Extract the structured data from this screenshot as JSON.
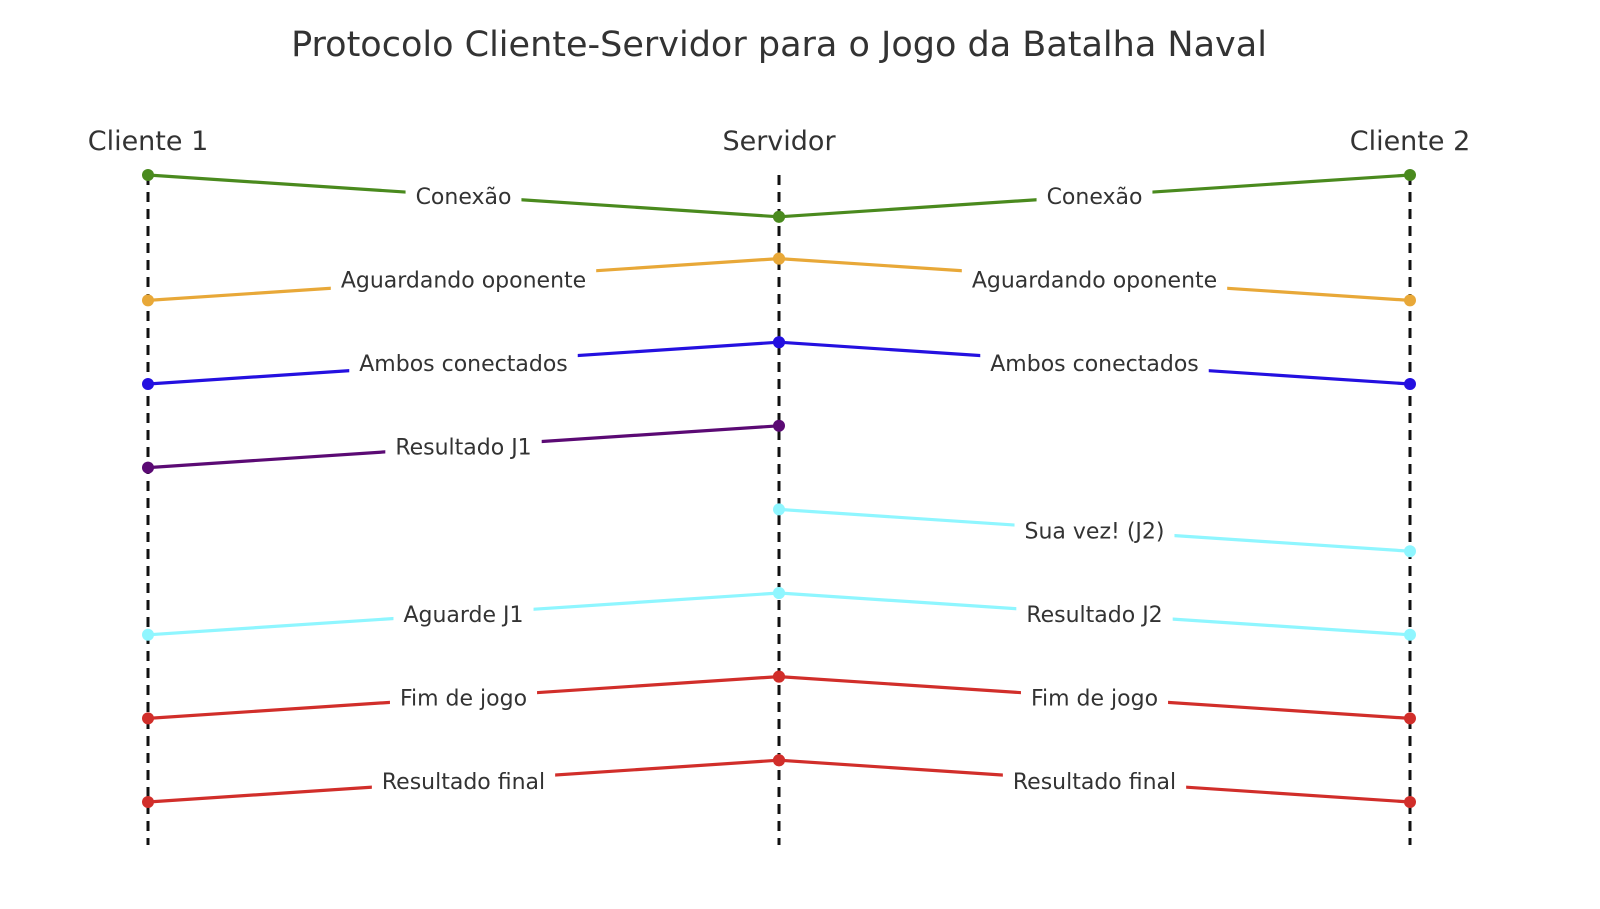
{
  "title": "Protocolo Cliente-Servidor para o Jogo da Batalha Naval",
  "lanes": [
    {
      "id": "c1",
      "label": "Cliente 1"
    },
    {
      "id": "srv",
      "label": "Servidor"
    },
    {
      "id": "c2",
      "label": "Cliente 2"
    }
  ],
  "messages": [
    {
      "from": "c1",
      "to": "srv",
      "label": "Conexão",
      "step": 0,
      "color": "#4a8a1e"
    },
    {
      "from": "c2",
      "to": "srv",
      "label": "Conexão",
      "step": 0,
      "color": "#4a8a1e"
    },
    {
      "from": "srv",
      "to": "c1",
      "label": "Aguardando oponente",
      "step": 2,
      "color": "#e8a838"
    },
    {
      "from": "srv",
      "to": "c2",
      "label": "Aguardando oponente",
      "step": 2,
      "color": "#e8a838"
    },
    {
      "from": "srv",
      "to": "c1",
      "label": "Ambos conectados",
      "step": 4,
      "color": "#2410e0"
    },
    {
      "from": "srv",
      "to": "c2",
      "label": "Ambos conectados",
      "step": 4,
      "color": "#2410e0"
    },
    {
      "from": "srv",
      "to": "c1",
      "label": "Resultado J1",
      "step": 6,
      "color": "#5b0a74"
    },
    {
      "from": "srv",
      "to": "c2",
      "label": "Sua vez! (J2)",
      "step": 8,
      "color": "#8ff6ff"
    },
    {
      "from": "srv",
      "to": "c1",
      "label": "Aguarde J1",
      "step": 10,
      "color": "#8ff6ff"
    },
    {
      "from": "srv",
      "to": "c2",
      "label": "Resultado J2",
      "step": 10,
      "color": "#8ff6ff"
    },
    {
      "from": "srv",
      "to": "c1",
      "label": "Fim de jogo",
      "step": 12,
      "color": "#d12e2a"
    },
    {
      "from": "srv",
      "to": "c2",
      "label": "Fim de jogo",
      "step": 12,
      "color": "#d12e2a"
    },
    {
      "from": "srv",
      "to": "c1",
      "label": "Resultado final",
      "step": 14,
      "color": "#d12e2a"
    },
    {
      "from": "srv",
      "to": "c2",
      "label": "Resultado final",
      "step": 14,
      "color": "#d12e2a"
    }
  ]
}
